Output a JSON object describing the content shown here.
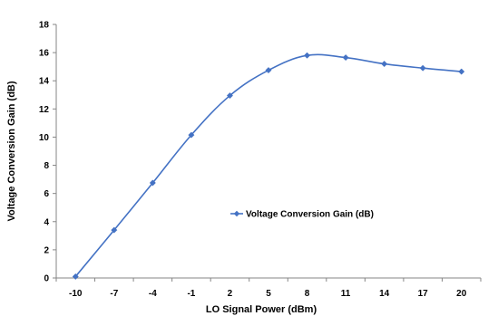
{
  "chart_data": {
    "type": "line",
    "x": [
      -10,
      -7,
      -4,
      -1,
      2,
      5,
      8,
      11,
      14,
      17,
      20
    ],
    "xtick_labels": [
      "-10",
      "-7",
      "-4",
      "-1",
      "2",
      "5",
      "8",
      "11",
      "14",
      "17",
      "20"
    ],
    "series": [
      {
        "name": "Voltage Conversion Gain (dB)",
        "color": "#4472C4",
        "marker": "diamond",
        "smooth": true,
        "values": [
          0.1,
          3.4,
          6.75,
          10.15,
          12.95,
          14.75,
          15.8,
          15.65,
          15.2,
          14.9,
          14.65
        ]
      }
    ],
    "xlabel": "LO Signal Power (dBm)",
    "ylabel": "Voltage Conversion Gain (dB)",
    "ylim": [
      0,
      18
    ],
    "yticks": [
      0,
      2,
      4,
      6,
      8,
      10,
      12,
      14,
      16,
      18
    ],
    "grid": false,
    "legend_position": "center-right"
  }
}
